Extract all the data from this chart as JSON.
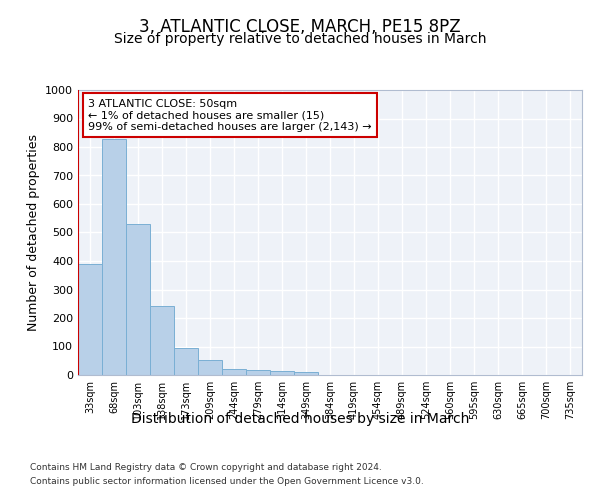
{
  "title": "3, ATLANTIC CLOSE, MARCH, PE15 8PZ",
  "subtitle": "Size of property relative to detached houses in March",
  "xlabel": "Distribution of detached houses by size in March",
  "ylabel": "Number of detached properties",
  "categories": [
    "33sqm",
    "68sqm",
    "103sqm",
    "138sqm",
    "173sqm",
    "209sqm",
    "244sqm",
    "279sqm",
    "314sqm",
    "349sqm",
    "384sqm",
    "419sqm",
    "454sqm",
    "489sqm",
    "524sqm",
    "560sqm",
    "595sqm",
    "630sqm",
    "665sqm",
    "700sqm",
    "735sqm"
  ],
  "values": [
    390,
    828,
    530,
    242,
    96,
    52,
    22,
    18,
    14,
    10,
    0,
    0,
    0,
    0,
    0,
    0,
    0,
    0,
    0,
    0,
    0
  ],
  "bar_color": "#b8d0e8",
  "bar_edge_color": "#7aafd4",
  "subject_line_color": "#cc0000",
  "annotation_box_text": "3 ATLANTIC CLOSE: 50sqm\n← 1% of detached houses are smaller (15)\n99% of semi-detached houses are larger (2,143) →",
  "annotation_box_color": "#cc0000",
  "ylim": [
    0,
    1000
  ],
  "yticks": [
    0,
    100,
    200,
    300,
    400,
    500,
    600,
    700,
    800,
    900,
    1000
  ],
  "background_color": "#eef2f8",
  "grid_color": "#ffffff",
  "footer_line1": "Contains HM Land Registry data © Crown copyright and database right 2024.",
  "footer_line2": "Contains public sector information licensed under the Open Government Licence v3.0.",
  "title_fontsize": 12,
  "subtitle_fontsize": 10,
  "xlabel_fontsize": 10,
  "ylabel_fontsize": 9
}
